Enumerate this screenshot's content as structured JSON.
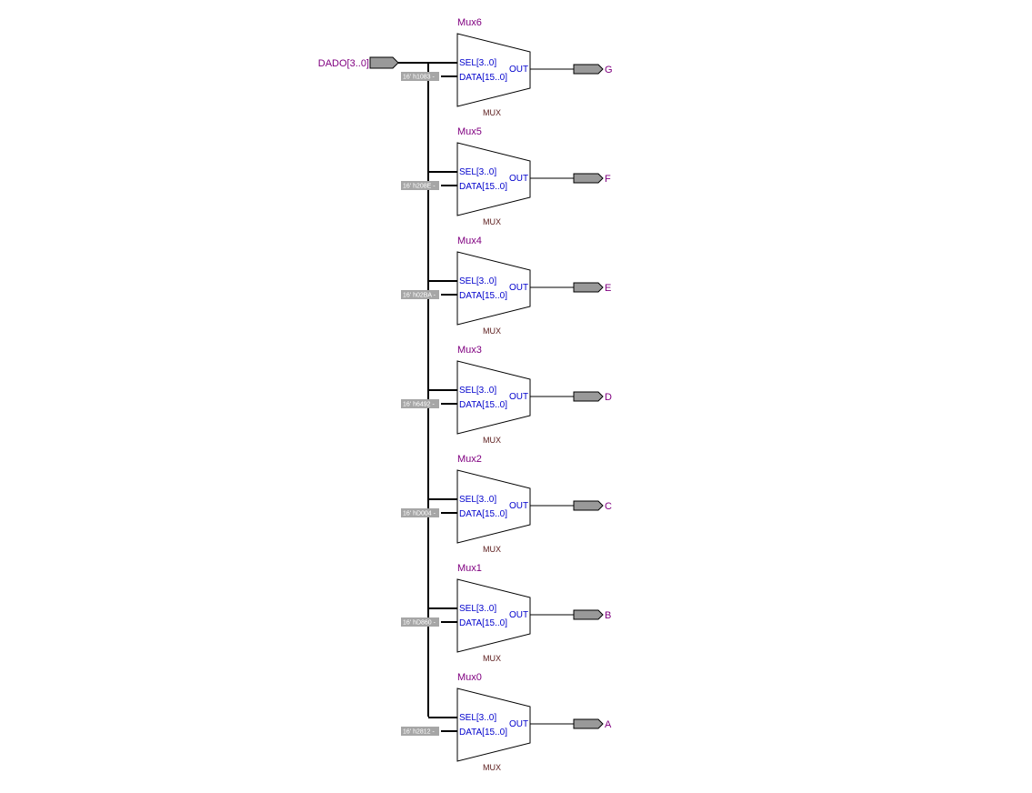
{
  "input_pin": {
    "label": "DADO[3..0]"
  },
  "mux_port_labels": {
    "sel": "SEL[3..0]",
    "data": "DATA[15..0]",
    "out": "OUT",
    "type": "MUX"
  },
  "muxes": [
    {
      "name": "Mux6",
      "constant": "16' h1083 -",
      "output": "G"
    },
    {
      "name": "Mux5",
      "constant": "16' h208E -",
      "output": "F"
    },
    {
      "name": "Mux4",
      "constant": "16' h02BA -",
      "output": "E"
    },
    {
      "name": "Mux3",
      "constant": "16' h6492 -",
      "output": "D"
    },
    {
      "name": "Mux2",
      "constant": "16' hD004 -",
      "output": "C"
    },
    {
      "name": "Mux1",
      "constant": "16' hD860 -",
      "output": "B"
    },
    {
      "name": "Mux0",
      "constant": "16' h2812 -",
      "output": "A"
    }
  ]
}
